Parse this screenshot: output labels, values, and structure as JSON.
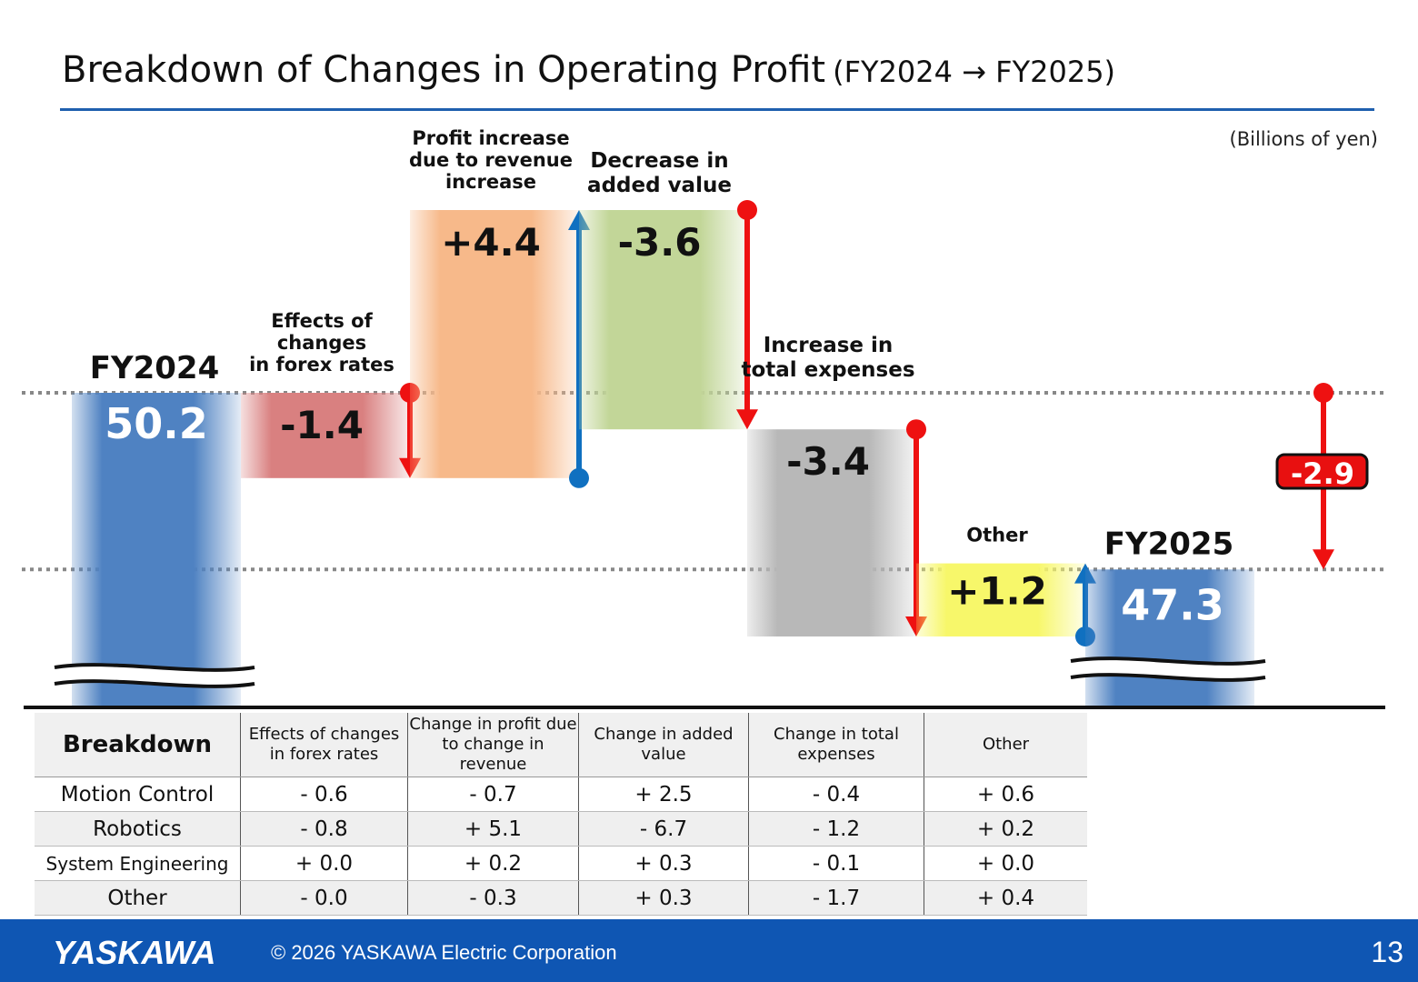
{
  "title": {
    "main": "Breakdown of Changes in Operating Profit",
    "sub": "(FY2024 → FY2025)"
  },
  "units": "(Billions of yen)",
  "chart_data": {
    "type": "waterfall",
    "start": {
      "name": "FY2024",
      "value": 50.2,
      "label": "50.2"
    },
    "end": {
      "name": "FY2025",
      "value": 47.3,
      "label": "47.3"
    },
    "steps": [
      {
        "category": "Effects of changes in forex rates",
        "label_lines": [
          "Effects of",
          "changes",
          "in forex rates"
        ],
        "value": -1.4,
        "label": "-1.4",
        "color": "#d98080"
      },
      {
        "category": "Profit increase due to revenue increase",
        "label_lines": [
          "Profit increase",
          "due to revenue",
          "increase"
        ],
        "value": 4.4,
        "label": "+4.4",
        "color": "#f7b98a"
      },
      {
        "category": "Decrease in added value",
        "label_lines": [
          "Decrease in",
          "added value"
        ],
        "value": -3.6,
        "label": "-3.6",
        "color": "#c2d698"
      },
      {
        "category": "Increase in total expenses",
        "label_lines": [
          "Increase in",
          "total expenses"
        ],
        "value": -3.4,
        "label": "-3.4",
        "color": "#b8b8b8"
      },
      {
        "category": "Other",
        "label_lines": [
          "Other"
        ],
        "value": 1.2,
        "label": "+1.2",
        "color": "#f7f76a"
      }
    ],
    "net_change": {
      "value": -2.9,
      "label": "-2.9"
    },
    "colors": {
      "base_bar": "#4f82c2",
      "increase_arrow": "#1070c0",
      "decrease_arrow": "#ee1111",
      "reference_line": "#888888"
    },
    "axis_break": true,
    "grid": false
  },
  "table": {
    "headers": [
      "Breakdown",
      "Effects of changes in forex rates",
      "Change in profit due to change in revenue",
      "Change in added value",
      "Change in total expenses",
      "Other"
    ],
    "rows": [
      {
        "label": "Motion Control",
        "values": [
          "- 0.6",
          "- 0.7",
          "+ 2.5",
          "- 0.4",
          "+ 0.6"
        ]
      },
      {
        "label": "Robotics",
        "values": [
          "- 0.8",
          "+ 5.1",
          "- 6.7",
          "- 1.2",
          "+ 0.2"
        ]
      },
      {
        "label": "System Engineering",
        "values": [
          "+ 0.0",
          "+ 0.2",
          "+ 0.3",
          "- 0.1",
          "+ 0.0"
        ]
      },
      {
        "label": "Other",
        "values": [
          "- 0.0",
          "- 0.3",
          "+ 0.3",
          "- 1.7",
          "+ 0.4"
        ]
      }
    ]
  },
  "footer": {
    "logo": "YASKAWA",
    "copyright": "© 2026 YASKAWA Electric Corporation",
    "page_number": "13"
  }
}
